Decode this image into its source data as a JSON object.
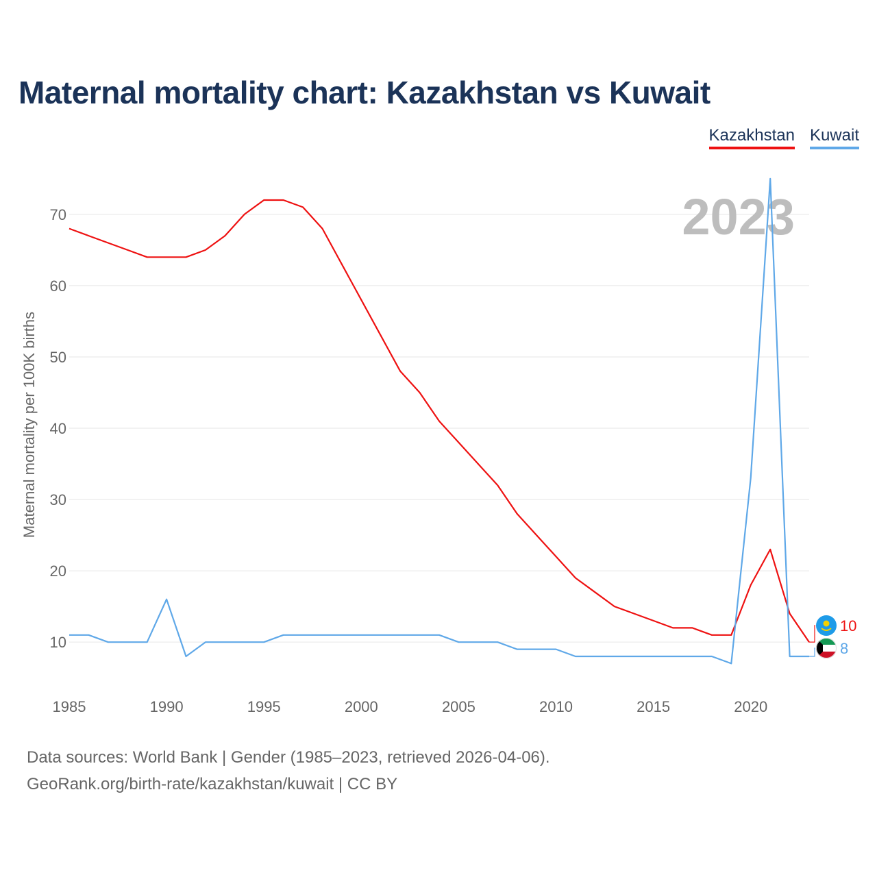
{
  "header": {
    "title": "Maternal mortality chart: Kazakhstan vs Kuwait"
  },
  "legend": {
    "items": [
      {
        "label": "Kazakhstan",
        "color": "#ee1111"
      },
      {
        "label": "Kuwait",
        "color": "#5fa8e8"
      }
    ]
  },
  "chart_data": {
    "type": "line",
    "title": "Maternal mortality chart: Kazakhstan vs Kuwait",
    "xlabel": "",
    "ylabel": "Maternal mortality per 100K births",
    "xlim": [
      1985,
      2023
    ],
    "ylim": [
      3,
      77
    ],
    "x_ticks": [
      1985,
      1990,
      1995,
      2000,
      2005,
      2010,
      2015,
      2020
    ],
    "y_ticks": [
      10,
      20,
      30,
      40,
      50,
      60,
      70
    ],
    "grid": true,
    "legend_position": "top-right",
    "year_label": "2023",
    "x": [
      1985,
      1986,
      1987,
      1988,
      1989,
      1990,
      1991,
      1992,
      1993,
      1994,
      1995,
      1996,
      1997,
      1998,
      1999,
      2000,
      2001,
      2002,
      2003,
      2004,
      2005,
      2006,
      2007,
      2008,
      2009,
      2010,
      2011,
      2012,
      2013,
      2014,
      2015,
      2016,
      2017,
      2018,
      2019,
      2020,
      2021,
      2022,
      2023
    ],
    "series": [
      {
        "name": "Kazakhstan",
        "color": "#ee1111",
        "end_label": "10",
        "flag": "kazakhstan-flag-icon",
        "values": [
          68,
          67,
          66,
          65,
          64,
          64,
          64,
          65,
          67,
          70,
          72,
          72,
          71,
          68,
          63,
          58,
          53,
          48,
          45,
          41,
          38,
          35,
          32,
          28,
          25,
          22,
          19,
          17,
          15,
          14,
          13,
          12,
          12,
          11,
          11,
          18,
          23,
          14,
          10
        ]
      },
      {
        "name": "Kuwait",
        "color": "#5fa8e8",
        "end_label": "8",
        "flag": "kuwait-flag-icon",
        "values": [
          11,
          11,
          10,
          10,
          10,
          16,
          8,
          10,
          10,
          10,
          10,
          11,
          11,
          11,
          11,
          11,
          11,
          11,
          11,
          11,
          10,
          10,
          10,
          9,
          9,
          9,
          8,
          8,
          8,
          8,
          8,
          8,
          8,
          8,
          7,
          33,
          75,
          8,
          8
        ]
      }
    ]
  },
  "footer": {
    "line1": "Data sources: World Bank | Gender (1985–2023, retrieved 2026-04-06).",
    "line2": "GeoRank.org/birth-rate/kazakhstan/kuwait | CC BY"
  }
}
